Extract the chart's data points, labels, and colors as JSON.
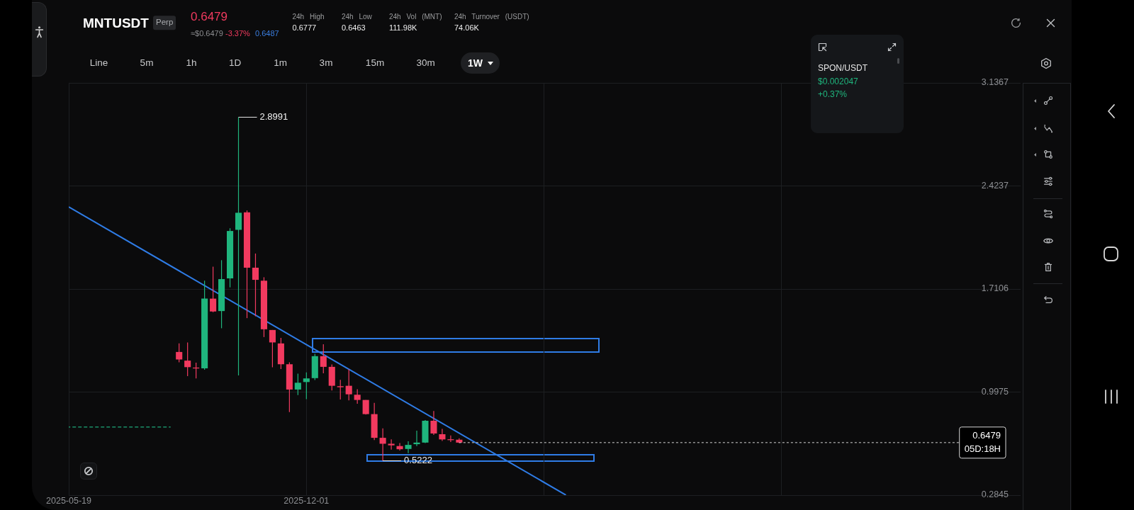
{
  "chart_data": {
    "type": "candlestick",
    "title": "MNTUSDT",
    "x": [
      "2025-08-18",
      "2025-08-25",
      "2025-09-01",
      "2025-09-08",
      "2025-09-15",
      "2025-09-22",
      "2025-09-29",
      "2025-10-06",
      "2025-10-13",
      "2025-10-20",
      "2025-10-27",
      "2025-11-03",
      "2025-11-10",
      "2025-11-17",
      "2025-11-24",
      "2025-12-01",
      "2025-12-08",
      "2025-12-15",
      "2025-12-22",
      "2025-12-29",
      "2026-01-05",
      "2026-01-12",
      "2026-01-19",
      "2026-01-26",
      "2026-02-02",
      "2026-02-09",
      "2026-02-16",
      "2026-02-23",
      "2026-03-02",
      "2026-03-09",
      "2026-03-16",
      "2026-03-23",
      "2026-03-30",
      "2026-04-06"
    ],
    "ohlc": [
      [
        1.275,
        1.334,
        1.203,
        1.223
      ],
      [
        1.215,
        1.341,
        1.108,
        1.17
      ],
      [
        1.167,
        1.201,
        1.092,
        1.161
      ],
      [
        1.162,
        1.768,
        1.152,
        1.644
      ],
      [
        1.644,
        1.865,
        1.55,
        1.555
      ],
      [
        1.558,
        1.91,
        1.439,
        1.779
      ],
      [
        1.784,
        2.131,
        1.722,
        2.112
      ],
      [
        2.12,
        2.8991,
        1.113,
        2.238
      ],
      [
        2.241,
        2.254,
        1.509,
        1.858
      ],
      [
        1.858,
        1.956,
        1.522,
        1.774
      ],
      [
        1.768,
        1.792,
        1.378,
        1.432
      ],
      [
        1.427,
        1.427,
        1.169,
        1.341
      ],
      [
        1.334,
        1.373,
        1.157,
        1.19
      ],
      [
        1.19,
        1.203,
        0.859,
        1.015
      ],
      [
        1.015,
        1.125,
        0.977,
        1.062
      ],
      [
        1.067,
        1.133,
        0.949,
        1.092
      ],
      [
        1.094,
        1.262,
        1.081,
        1.246
      ],
      [
        1.246,
        1.328,
        1.128,
        1.172
      ],
      [
        1.172,
        1.189,
        1.009,
        1.041
      ],
      [
        1.038,
        1.082,
        0.946,
        1.031
      ],
      [
        1.041,
        1.156,
        0.94,
        0.982
      ],
      [
        0.979,
        1.017,
        0.917,
        0.943
      ],
      [
        0.943,
        0.943,
        0.842,
        0.845
      ],
      [
        0.845,
        0.923,
        0.665,
        0.681
      ],
      [
        0.681,
        0.747,
        0.5222,
        0.64
      ],
      [
        0.64,
        0.671,
        0.599,
        0.629
      ],
      [
        0.624,
        0.645,
        0.593,
        0.602
      ],
      [
        0.604,
        0.657,
        0.575,
        0.632
      ],
      [
        0.637,
        0.73,
        0.624,
        0.648
      ],
      [
        0.648,
        0.804,
        0.645,
        0.799
      ],
      [
        0.799,
        0.866,
        0.701,
        0.711
      ],
      [
        0.706,
        0.743,
        0.66,
        0.67
      ],
      [
        0.671,
        0.697,
        0.652,
        0.665
      ],
      [
        0.668,
        0.678,
        0.645,
        0.6479
      ]
    ],
    "colors": [
      "#f23a5f",
      "#f23a5f",
      "#f23a5f",
      "#1fb57d",
      "#f23a5f",
      "#1fb57d",
      "#1fb57d",
      "#1fb57d",
      "#f23a5f",
      "#f23a5f",
      "#f23a5f",
      "#f23a5f",
      "#f23a5f",
      "#f23a5f",
      "#1fb57d",
      "#1fb57d",
      "#1fb57d",
      "#f23a5f",
      "#f23a5f",
      "#f23a5f",
      "#f23a5f",
      "#f23a5f",
      "#f23a5f",
      "#f23a5f",
      "#f23a5f",
      "#f23a5f",
      "#f23a5f",
      "#1fb57d",
      "#1fb57d",
      "#1fb57d",
      "#f23a5f",
      "#f23a5f",
      "#f23a5f",
      "#f23a5f"
    ],
    "series": [
      {
        "type": "line",
        "color": "#2f7ce6",
        "x": [
          "2025-05-19",
          "2026-07-03"
        ],
        "values": [
          2.279,
          0.285
        ]
      },
      {
        "type": "line",
        "color": "#1fa97a",
        "line_style": "dashed",
        "x": [
          "2025-05-19",
          "2025-08-11"
        ],
        "values": [
          0.756,
          0.756
        ]
      }
    ],
    "xlim": [
      "2025-05-19",
      "2027-07-13"
    ],
    "xticks": [
      "2025-05-19",
      "2025-12-01",
      {
        "value": "2026-06-15",
        "label": null
      },
      {
        "value": "2026-12-28",
        "label": null
      }
    ],
    "ylim": [
      0.2845,
      3.1367
    ],
    "yticks": [
      0.2845,
      0.9975,
      1.7106,
      2.4237,
      3.1367
    ],
    "grid": true,
    "ref_lines": [
      {
        "axis": "y",
        "value": 0.6479,
        "label": "0.6479\n05D:18H",
        "color": "#d6d6d6",
        "line_style": "dashed"
      }
    ],
    "annotations": [
      "Perp",
      "0.6479",
      "≈$0.6479",
      "-3.37%",
      "0.6487",
      "24h High",
      "0.6777",
      "24h Low",
      "0.6463",
      "24h Vol (MNT)",
      "111.98K",
      "24h Turnover (USDT)",
      "74.06K",
      "Line",
      "5m",
      "1h",
      "1D",
      "1m",
      "3m",
      "15m",
      "30m",
      "1W",
      "SPON/USDT",
      "$0.002047",
      "+0.37%",
      {
        "text": "2.8991",
        "x": "2025-10-06",
        "y": 2.8991
      },
      {
        "text": "0.5222",
        "x": "2026-02-02",
        "y": 0.5222
      }
    ]
  }
}
